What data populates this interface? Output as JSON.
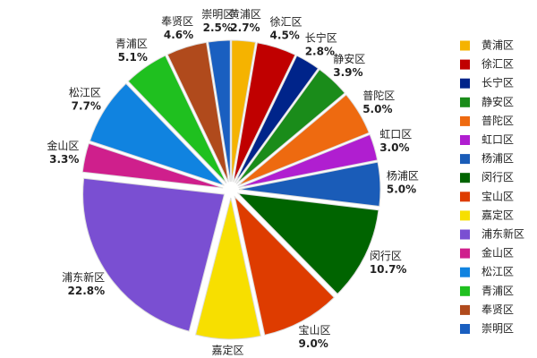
{
  "chart_data": {
    "type": "pie",
    "categories": [
      "黄浦区",
      "徐汇区",
      "长宁区",
      "静安区",
      "普陀区",
      "虹口区",
      "杨浦区",
      "闵行区",
      "宝山区",
      "嘉定区",
      "浦东新区",
      "金山区",
      "松江区",
      "青浦区",
      "奉贤区",
      "崇明区"
    ],
    "values": [
      2.7,
      4.5,
      2.8,
      3.9,
      5.0,
      3.0,
      5.0,
      10.7,
      9.0,
      7.4,
      22.8,
      3.3,
      7.7,
      5.1,
      4.6,
      2.5
    ],
    "value_labels": [
      "2.7%",
      "4.5%",
      "2.8%",
      "3.9%",
      "5.0%",
      "3.0%",
      "5.0%",
      "10.7%",
      "9.0%",
      null,
      "22.8%",
      "3.3%",
      "7.7%",
      "5.1%",
      "4.6%",
      "2.5%"
    ],
    "colors": [
      "#f5b300",
      "#c00000",
      "#00248a",
      "#1a8c1a",
      "#ee6a10",
      "#b01ed0",
      "#1a5cb8",
      "#006400",
      "#de3c00",
      "#f7df00",
      "#7a4fd2",
      "#cf1f8c",
      "#1083e0",
      "#1fc01f",
      "#b04a1c",
      "#1a5fc0"
    ],
    "legend": "right"
  }
}
